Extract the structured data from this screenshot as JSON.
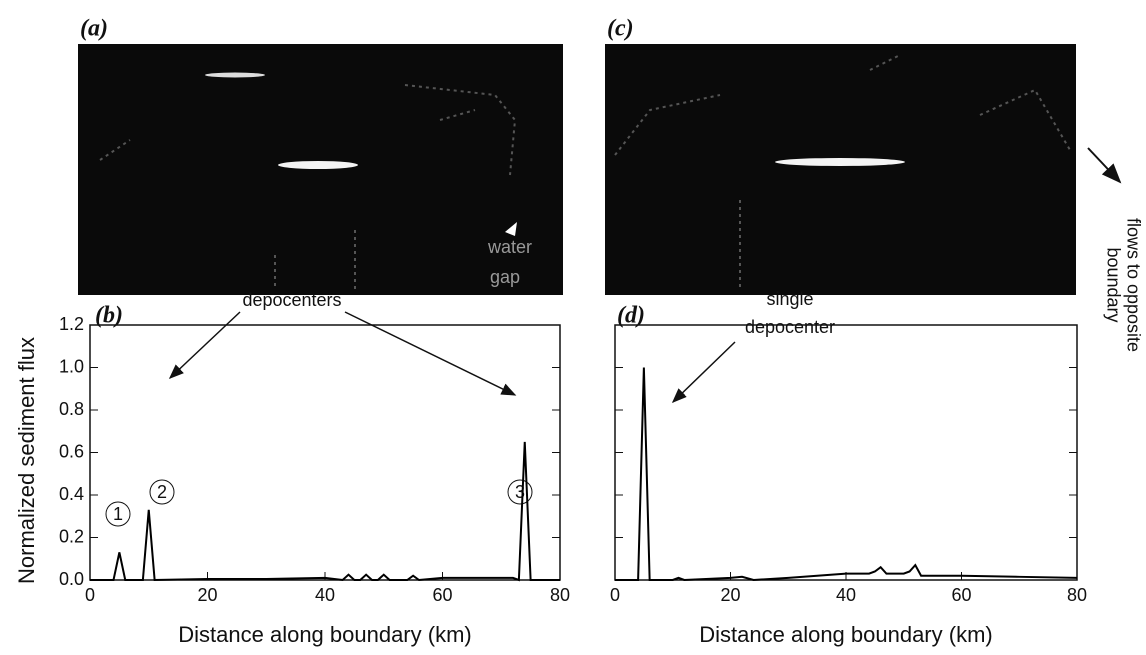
{
  "images": [
    {
      "label": "(a)",
      "annotations": [
        "water",
        "gap"
      ]
    },
    {
      "label": "(c)",
      "annotations": [
        "flows to opposite",
        "boundary"
      ]
    }
  ],
  "chart_data": [
    {
      "type": "line",
      "panel_label": "(b)",
      "xlabel": "Distance along boundary (km)",
      "ylabel": "Normalized sediment flux",
      "color": "#000000",
      "ytick_labels": true,
      "x": [
        0,
        4,
        5,
        6,
        9,
        10,
        11,
        20,
        30,
        40,
        43,
        44,
        45,
        46,
        47,
        48,
        49,
        50,
        51,
        54,
        55,
        56,
        60,
        72,
        73,
        74,
        75,
        76,
        80
      ],
      "values": [
        0,
        0,
        0.13,
        0,
        0,
        0.33,
        0,
        0.005,
        0.005,
        0.01,
        0,
        0.025,
        0,
        0,
        0.025,
        0,
        0,
        0.025,
        0,
        0,
        0.02,
        0,
        0.01,
        0.01,
        0,
        0.65,
        0,
        0,
        0
      ],
      "xlim": [
        0,
        80
      ],
      "ylim": [
        0,
        1.2
      ],
      "xticks": [
        0,
        20,
        40,
        60,
        80
      ],
      "yticks": [
        {
          "value": 0,
          "label": "0.0"
        },
        {
          "value": 0.2,
          "label": "0.2"
        },
        {
          "value": 0.4,
          "label": "0.4"
        },
        {
          "value": 0.6,
          "label": "0.6"
        },
        {
          "value": 0.8,
          "label": "0.8"
        },
        {
          "value": 1.0,
          "label": "1.0"
        },
        {
          "value": 1.2,
          "label": "1.2"
        }
      ],
      "annotations": [
        "depocenters",
        "1",
        "2",
        "3"
      ]
    },
    {
      "type": "line",
      "panel_label": "(d)",
      "xlabel": "Distance along boundary (km)",
      "color": "#000000",
      "ytick_labels": false,
      "x": [
        0,
        4,
        5,
        6,
        7,
        10,
        11,
        12,
        20,
        22,
        24,
        30,
        40,
        44,
        45,
        46,
        47,
        50,
        51,
        52,
        53,
        54,
        60,
        70,
        80
      ],
      "values": [
        0,
        0,
        1.0,
        0,
        0,
        0,
        0.01,
        0,
        0.01,
        0.015,
        0,
        0.01,
        0.03,
        0.03,
        0.04,
        0.06,
        0.03,
        0.03,
        0.04,
        0.07,
        0.02,
        0.02,
        0.02,
        0.015,
        0.01
      ],
      "xlim": [
        0,
        80
      ],
      "ylim": [
        0,
        1.2
      ],
      "xticks": [
        0,
        20,
        40,
        60,
        80
      ],
      "yticks": [
        0,
        0.2,
        0.4,
        0.6,
        0.8,
        1.0,
        1.2
      ],
      "annotations": [
        "single",
        "depocenter"
      ]
    }
  ]
}
